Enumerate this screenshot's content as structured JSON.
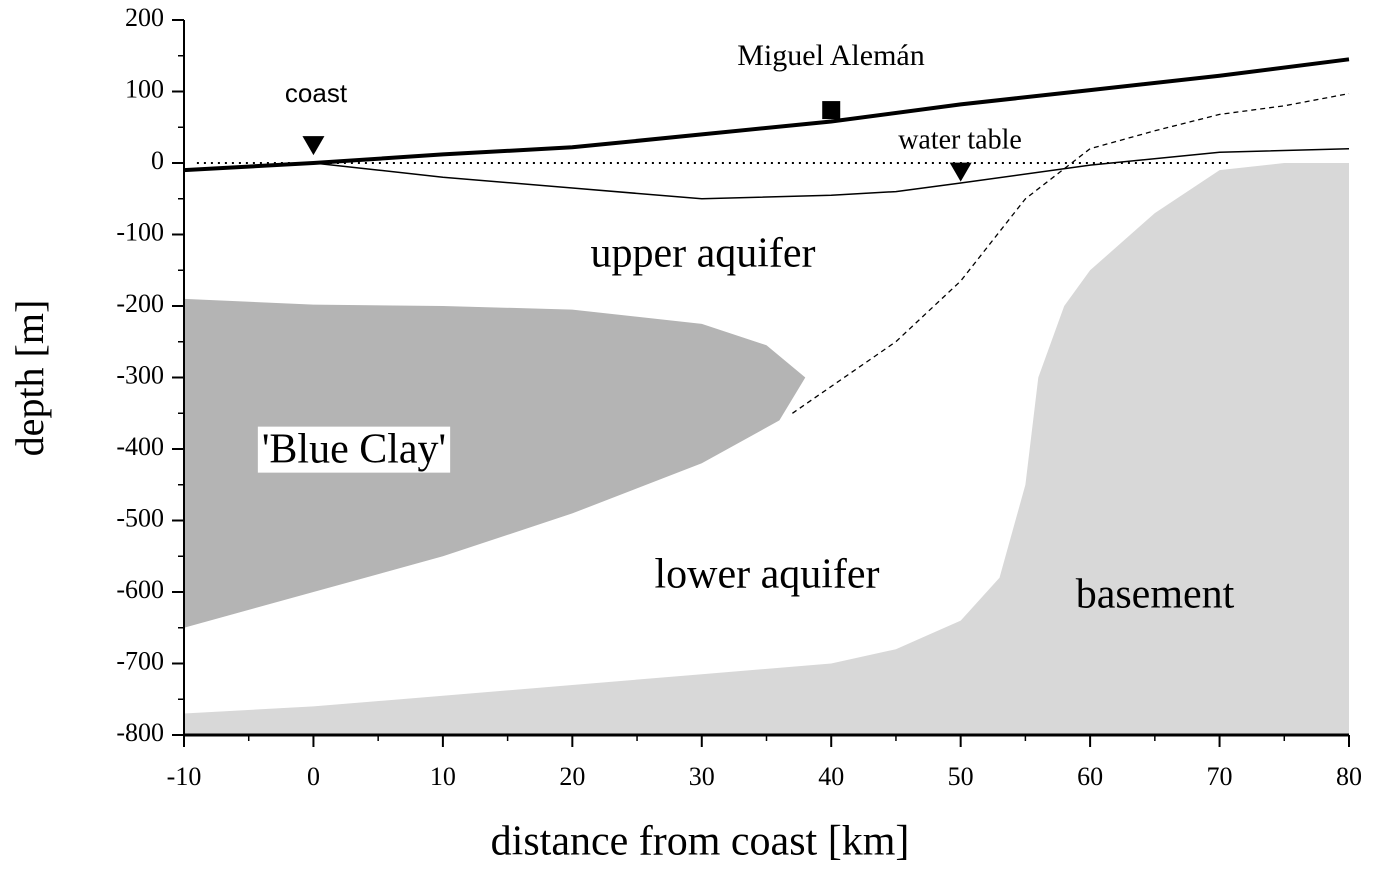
{
  "chart_data": {
    "type": "line",
    "xlabel": "distance from coast [km]",
    "ylabel": "depth [m]",
    "xlim": [
      -10,
      80
    ],
    "xticks": [
      -10,
      0,
      10,
      20,
      30,
      40,
      50,
      60,
      70,
      80
    ],
    "xminorticks": [
      -5,
      5,
      15,
      25,
      35,
      45,
      55,
      65,
      75
    ],
    "ylim": [
      -800,
      200
    ],
    "yticks": [
      -800,
      -700,
      -600,
      -500,
      -400,
      -300,
      -200,
      -100,
      0,
      100,
      200
    ],
    "yminorticks": [
      -750,
      -650,
      -550,
      -450,
      -350,
      -250,
      -150,
      -50,
      50,
      150
    ],
    "series": [
      {
        "kind": "area",
        "color": "#b4b4b4",
        "x": [
          -10,
          0,
          10,
          20,
          30,
          35,
          38,
          36,
          30,
          20,
          10,
          0,
          -10
        ],
        "values": [
          -190,
          -198,
          -200,
          -205,
          -225,
          -255,
          -300,
          -360,
          -420,
          -490,
          -550,
          -600,
          -650
        ]
      },
      {
        "kind": "area",
        "color": "#d8d8d8",
        "x": [
          -10,
          0,
          10,
          20,
          30,
          40,
          45,
          50,
          53,
          55,
          56,
          58,
          60,
          65,
          70,
          75,
          80,
          80,
          -10
        ],
        "values": [
          -770,
          -760,
          -745,
          -730,
          -715,
          -700,
          -680,
          -640,
          -580,
          -450,
          -300,
          -200,
          -150,
          -70,
          -10,
          0,
          0,
          -800,
          -800
        ]
      },
      {
        "kind": "dotted",
        "color": "#000000",
        "x": [
          -9,
          71
        ],
        "values": [
          0,
          0
        ]
      },
      {
        "kind": "thin",
        "color": "#000000",
        "x": [
          0,
          5,
          10,
          20,
          30,
          40,
          45,
          50,
          60,
          70,
          80
        ],
        "values": [
          0,
          -10,
          -20,
          -35,
          -50,
          -45,
          -40,
          -28,
          -3,
          15,
          20
        ]
      },
      {
        "kind": "dashed",
        "color": "#000000",
        "x": [
          37,
          45,
          50,
          55,
          60,
          65,
          70,
          75,
          80
        ],
        "values": [
          -350,
          -250,
          -165,
          -50,
          20,
          45,
          68,
          80,
          97
        ]
      },
      {
        "kind": "thick",
        "color": "#000000",
        "x": [
          -10,
          0,
          10,
          20,
          30,
          40,
          50,
          60,
          70,
          80
        ],
        "values": [
          -10,
          0,
          12,
          22,
          40,
          58,
          82,
          102,
          122,
          145
        ]
      },
      {
        "kind": "triangle",
        "color": "#000000",
        "x": [
          0,
          50
        ],
        "values": [
          25,
          -12
        ]
      },
      {
        "kind": "square",
        "color": "#000000",
        "x": [
          40
        ],
        "values": [
          74
        ]
      }
    ],
    "annotations": [
      "coast",
      "Miguel Alemán",
      "water table",
      "upper aquifer",
      "'Blue Clay'",
      "lower aquifer",
      "basement"
    ]
  }
}
